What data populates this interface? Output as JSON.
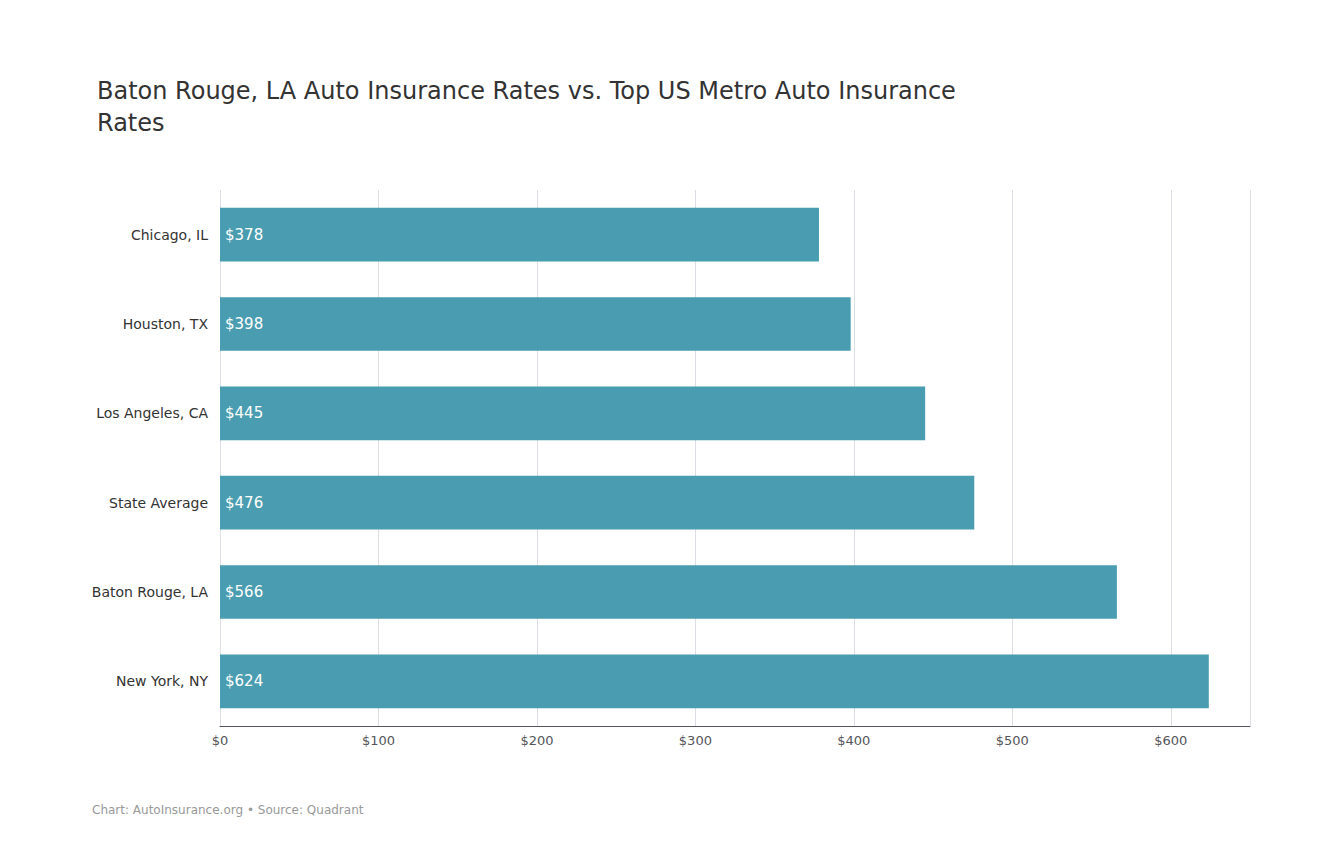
{
  "chart_data": {
    "type": "bar",
    "orientation": "horizontal",
    "title": "Baton Rouge, LA Auto Insurance Rates vs. Top US Metro Auto Insurance\nRates",
    "categories": [
      "Chicago, IL",
      "Houston, TX",
      "Los Angeles, CA",
      "State Average",
      "Baton Rouge, LA",
      "New York, NY"
    ],
    "values": [
      378,
      398,
      445,
      476,
      566,
      624
    ],
    "value_labels": [
      "$378",
      "$398",
      "$445",
      "$476",
      "$566",
      "$624"
    ],
    "data_labels": true,
    "color": "#4a9db0",
    "xlim": [
      0,
      650
    ],
    "xticks": [
      {
        "value": 0,
        "label": "$0"
      },
      {
        "value": 100,
        "label": "$100"
      },
      {
        "value": 200,
        "label": "$200"
      },
      {
        "value": 300,
        "label": "$300"
      },
      {
        "value": 400,
        "label": "$400"
      },
      {
        "value": 500,
        "label": "$500"
      },
      {
        "value": 600,
        "label": "$600"
      }
    ],
    "grid": true,
    "annotations": [
      "Chart: AutoInsurance.org • Source: Quadrant"
    ]
  }
}
